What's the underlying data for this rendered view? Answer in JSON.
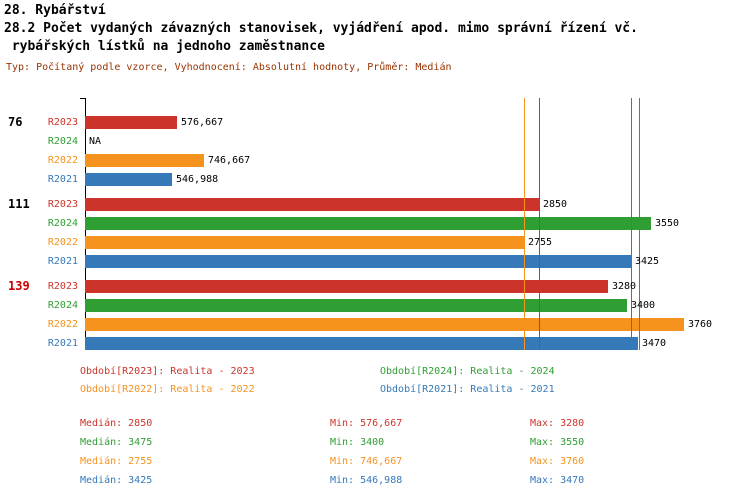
{
  "header": {
    "title": "28. Rybářství",
    "subtitle_line1": "28.2 Počet vydaných závazných stanovisek, vyjádření apod. mimo správní řízení vč.",
    "subtitle_line2": " rybářských lístků na jednoho zaměstnance",
    "meta": "Typ: Počítaný podle vzorce, Vyhodnocení: Absolutní hodnoty, Průměr: Medián"
  },
  "colors": {
    "R2023": "#cc342b",
    "R2024": "#2f9e33",
    "R2022": "#f6921e",
    "R2021": "#3579b8",
    "group_highlight": "#cc0000",
    "text": "#000000",
    "meta": "#993300"
  },
  "chart_data": {
    "type": "bar",
    "orientation": "horizontal",
    "value_axis_max": 3760,
    "grid": false,
    "groups": [
      {
        "label": "76",
        "label_color": "#000000",
        "bars": [
          {
            "series": "R2023",
            "value": 576.667,
            "display": "576,667"
          },
          {
            "series": "R2024",
            "value": null,
            "display": "NA"
          },
          {
            "series": "R2022",
            "value": 746.667,
            "display": "746,667"
          },
          {
            "series": "R2021",
            "value": 546.988,
            "display": "546,988"
          }
        ]
      },
      {
        "label": "111",
        "label_color": "#000000",
        "bars": [
          {
            "series": "R2023",
            "value": 2850,
            "display": "2850"
          },
          {
            "series": "R2024",
            "value": 3550,
            "display": "3550"
          },
          {
            "series": "R2022",
            "value": 2755,
            "display": "2755"
          },
          {
            "series": "R2021",
            "value": 3425,
            "display": "3425"
          }
        ]
      },
      {
        "label": "139",
        "label_color": "#cc0000",
        "bars": [
          {
            "series": "R2023",
            "value": 3280,
            "display": "3280"
          },
          {
            "series": "R2024",
            "value": 3400,
            "display": "3400"
          },
          {
            "series": "R2022",
            "value": 3760,
            "display": "3760"
          },
          {
            "series": "R2021",
            "value": 3470,
            "display": "3470"
          }
        ]
      }
    ],
    "medians": [
      {
        "series": "R2022",
        "value": 2755
      },
      {
        "series": "R2023",
        "value": 2850
      },
      {
        "series": "R2021",
        "value": 3425
      },
      {
        "series": "R2024",
        "value": 3475
      }
    ],
    "legend": [
      {
        "series": "R2023",
        "text": "Období[R2023]: Realita - 2023",
        "col": 0
      },
      {
        "series": "R2024",
        "text": "Období[R2024]: Realita - 2024",
        "col": 1
      },
      {
        "series": "R2022",
        "text": "Období[R2022]: Realita - 2022",
        "col": 0
      },
      {
        "series": "R2021",
        "text": "Období[R2021]: Realita - 2021",
        "col": 1
      }
    ],
    "stats": [
      {
        "series": "R2023",
        "median": "Medián: 2850",
        "min": "Min: 576,667",
        "max": "Max: 3280"
      },
      {
        "series": "R2024",
        "median": "Medián: 3475",
        "min": "Min: 3400",
        "max": "Max: 3550"
      },
      {
        "series": "R2022",
        "median": "Medián: 2755",
        "min": "Min: 746,667",
        "max": "Max: 3760"
      },
      {
        "series": "R2021",
        "median": "Medián: 3425",
        "min": "Min: 546,988",
        "max": "Max: 3470"
      }
    ]
  }
}
